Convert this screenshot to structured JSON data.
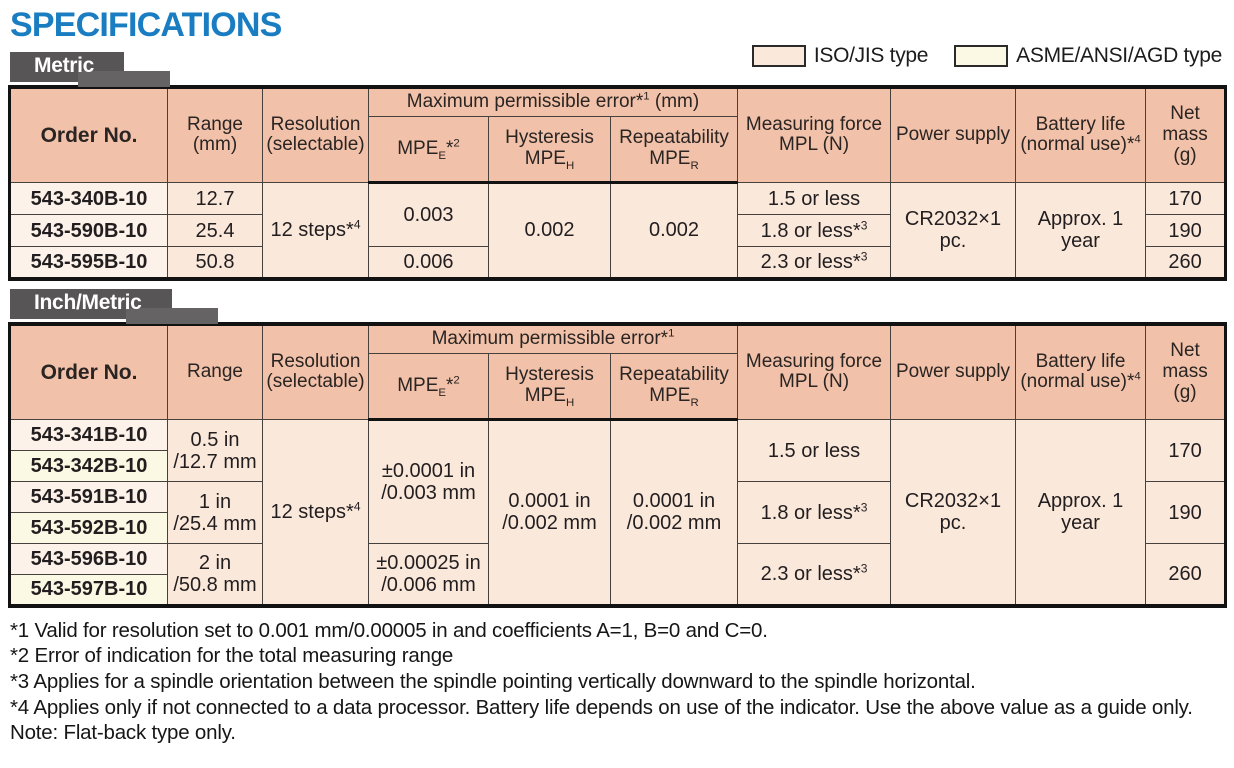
{
  "page_title": "SPECIFICATIONS",
  "colors": {
    "title_blue": "#1a7dc2",
    "header_salmon": "#f1c2a9",
    "iso_row_pink": "#fae8db",
    "asme_row_yellow": "#fbf8e3",
    "tab_gray": "#575555"
  },
  "legend": {
    "items": [
      {
        "name": "iso-jis",
        "label": "ISO/JIS type",
        "color": "#fae8db"
      },
      {
        "name": "asme-ansi-agd",
        "label": "ASME/ANSI/AGD type",
        "color": "#fbf8e3"
      }
    ]
  },
  "tables": [
    {
      "tab_label": "Metric",
      "header_rows": [
        [
          {
            "t": "Order No.",
            "rs": 2,
            "cls": "bold"
          },
          {
            "t": "Range\n(mm)",
            "rs": 2
          },
          {
            "t": "Resolution\n(selectable)",
            "rs": 2
          },
          {
            "t": "Maximum permissible error*^1^ (mm)",
            "cs": 3
          },
          {
            "t": "Measuring force\nMPL (N)",
            "rs": 2
          },
          {
            "t": "Power supply",
            "rs": 2
          },
          {
            "t": "Battery life\n(normal use)*^4^",
            "rs": 2
          },
          {
            "t": "Net mass\n(g)",
            "rs": 2
          }
        ],
        [
          {
            "t": "MPE~E~*^2^"
          },
          {
            "t": "Hysteresis\nMPE~H~"
          },
          {
            "t": "Repeatability\nMPE~R~"
          }
        ]
      ],
      "body_rows": [
        [
          {
            "t": "543-340B-10",
            "cls": "order"
          },
          {
            "t": "12.7"
          },
          {
            "t": "12 steps*^4^",
            "rs": 3
          },
          {
            "t": "0.003",
            "rs": 2
          },
          {
            "t": "0.002",
            "rs": 3
          },
          {
            "t": "0.002",
            "rs": 3
          },
          {
            "t": "1.5 or less"
          },
          {
            "t": "CR2032×1 pc.",
            "rs": 3
          },
          {
            "t": "Approx. 1 year",
            "rs": 3
          },
          {
            "t": "170"
          }
        ],
        [
          {
            "t": "543-590B-10",
            "cls": "order"
          },
          {
            "t": "25.4"
          },
          {
            "t": "1.8 or less*^3^"
          },
          {
            "t": "190"
          }
        ],
        [
          {
            "t": "543-595B-10",
            "cls": "order"
          },
          {
            "t": "50.8"
          },
          {
            "t": "0.006"
          },
          {
            "t": "2.3 or less*^3^"
          },
          {
            "t": "260"
          }
        ]
      ]
    },
    {
      "tab_label": "Inch/Metric",
      "header_rows": [
        [
          {
            "t": "Order No.",
            "rs": 2,
            "cls": "bold"
          },
          {
            "t": "Range",
            "rs": 2
          },
          {
            "t": "Resolution\n(selectable)",
            "rs": 2
          },
          {
            "t": "Maximum permissible error*^1^",
            "cs": 3
          },
          {
            "t": "Measuring force\nMPL (N)",
            "rs": 2
          },
          {
            "t": "Power supply",
            "rs": 2
          },
          {
            "t": "Battery life\n(normal use)*^4^",
            "rs": 2
          },
          {
            "t": "Net mass\n(g)",
            "rs": 2
          }
        ],
        [
          {
            "t": "MPE~E~*^2^"
          },
          {
            "t": "Hysteresis\nMPE~H~"
          },
          {
            "t": "Repeatability\nMPE~R~"
          }
        ]
      ],
      "body_rows": [
        [
          {
            "t": "543-341B-10",
            "cls": "order"
          },
          {
            "t": "0.5 in\n/12.7 mm",
            "rs": 2
          },
          {
            "t": "12 steps*^4^",
            "rs": 6
          },
          {
            "t": "±0.0001 in\n/0.003 mm",
            "rs": 4
          },
          {
            "t": "0.0001 in\n/0.002 mm",
            "rs": 6
          },
          {
            "t": "0.0001 in\n/0.002 mm",
            "rs": 6
          },
          {
            "t": "1.5 or less",
            "rs": 2
          },
          {
            "t": "CR2032×1 pc.",
            "rs": 6
          },
          {
            "t": "Approx. 1 year",
            "rs": 6
          },
          {
            "t": "170",
            "rs": 2
          }
        ],
        [
          {
            "t": "543-342B-10",
            "cls": "order yellow"
          }
        ],
        [
          {
            "t": "543-591B-10",
            "cls": "order"
          },
          {
            "t": "1 in\n/25.4 mm",
            "rs": 2
          },
          {
            "t": "1.8 or less*^3^",
            "rs": 2
          },
          {
            "t": "190",
            "rs": 2
          }
        ],
        [
          {
            "t": "543-592B-10",
            "cls": "order yellow"
          }
        ],
        [
          {
            "t": "543-596B-10",
            "cls": "order"
          },
          {
            "t": "2 in\n/50.8 mm",
            "rs": 2
          },
          {
            "t": "±0.00025 in\n/0.006 mm",
            "rs": 2
          },
          {
            "t": "2.3 or less*^3^",
            "rs": 2
          },
          {
            "t": "260",
            "rs": 2
          }
        ],
        [
          {
            "t": "543-597B-10",
            "cls": "order yellow"
          }
        ]
      ]
    }
  ],
  "footnotes": [
    "*1 Valid for resolution set to 0.001 mm/0.00005 in and coefficients A=1, B=0 and C=0.",
    "*2 Error of indication for the total measuring range",
    "*3 Applies for a spindle orientation between the spindle pointing vertically downward to the spindle horizontal.",
    "*4 Applies only if not connected to a data processor. Battery life depends on use of the indicator. Use the above value as a guide only.",
    "Note: Flat-back type only."
  ]
}
